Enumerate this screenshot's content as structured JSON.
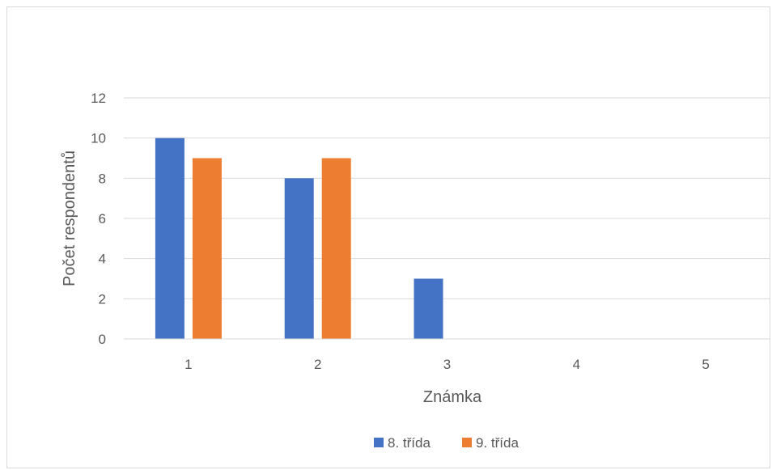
{
  "chart_data": {
    "type": "bar",
    "title": "",
    "xlabel": "Známka",
    "ylabel": "Počet respondentů",
    "categories": [
      "1",
      "2",
      "3",
      "4",
      "5"
    ],
    "series": [
      {
        "name": "8. třída",
        "color": "#4472C4",
        "values": [
          10,
          8,
          3,
          0,
          0
        ]
      },
      {
        "name": "9. třída",
        "color": "#ED7D31",
        "values": [
          9,
          9,
          0,
          0,
          0
        ]
      }
    ],
    "ylim": [
      0,
      12
    ],
    "yticks": [
      "0",
      "2",
      "4",
      "6",
      "8",
      "10",
      "12"
    ],
    "grid": true,
    "legend_position": "bottom"
  }
}
